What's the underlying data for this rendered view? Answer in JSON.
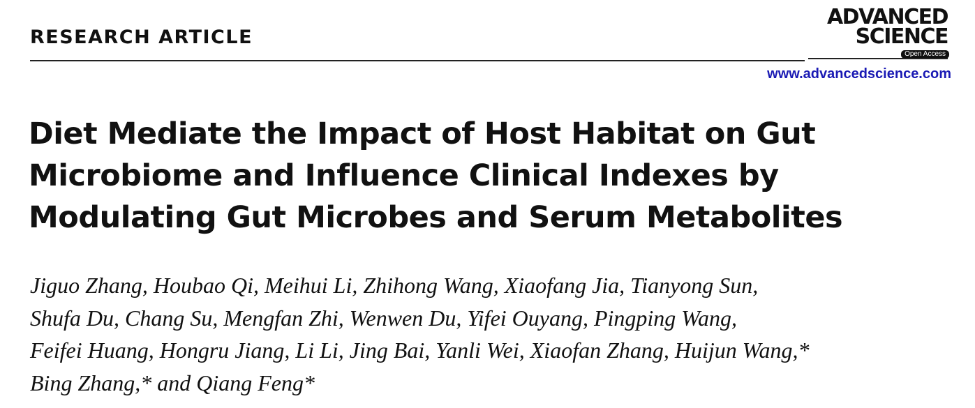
{
  "header": {
    "section_label": "RESEARCH ARTICLE",
    "journal_logo_line1": "ADVANCED",
    "journal_logo_line2": "SCIENCE",
    "journal_badge": "Open Access",
    "journal_url": "www.advancedscience.com"
  },
  "article": {
    "title": "Diet Mediate the Impact of Host Habitat on Gut Microbiome and Influence Clinical Indexes by Modulating Gut Microbes and Serum Metabolites",
    "author_lines": [
      "Jiguo Zhang, Houbao Qi, Meihui Li, Zhihong Wang, Xiaofang Jia, Tianyong Sun,",
      "Shufa Du, Chang Su, Mengfan Zhi, Wenwen Du, Yifei Ouyang, Pingping Wang,",
      "Feifei Huang, Hongru Jiang, Li Li, Jing Bai, Yanli Wei, Xiaofan Zhang, Huijun Wang,*",
      "Bing Zhang,* and Qiang Feng*"
    ]
  },
  "colors": {
    "text": "#111111",
    "link": "#1a1ab4",
    "rule": "#222222"
  }
}
